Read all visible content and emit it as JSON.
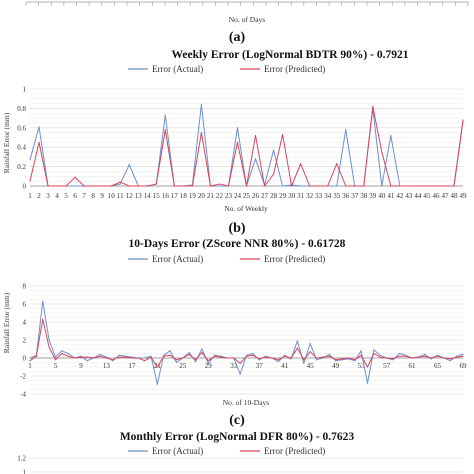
{
  "labels": {
    "a": "(a)",
    "b": "(b)",
    "c": "(c)"
  },
  "chart_data": [
    {
      "type": "line",
      "title": "",
      "xlabel": "No. of Days",
      "ylabel": "",
      "partial": true
    },
    {
      "type": "line",
      "title": "Weekly Error (LogNormal BDTR 90%) - 0.7921",
      "xlabel": "No. of Weekly",
      "ylabel": "Rainfall Error (mm)",
      "ylim": [
        0,
        1
      ],
      "yticks": [
        "0",
        "0.2",
        "0.4",
        "0.6",
        "0.8",
        "1"
      ],
      "grid": true,
      "legend": "top-center",
      "colors": {
        "actual": "#6e8fd0",
        "predicted": "#d9435a"
      },
      "x": [
        1,
        2,
        3,
        4,
        5,
        6,
        7,
        8,
        9,
        10,
        11,
        12,
        13,
        14,
        15,
        16,
        17,
        18,
        19,
        20,
        21,
        22,
        23,
        24,
        25,
        26,
        27,
        28,
        29,
        30,
        31,
        32,
        33,
        34,
        35,
        36,
        37,
        38,
        39,
        40,
        41,
        42,
        43,
        44,
        45,
        46,
        47,
        48,
        49
      ],
      "series": [
        {
          "name": "Error (Actual)",
          "values": [
            0.27,
            0.61,
            0,
            0,
            0,
            0,
            0,
            0,
            0,
            0,
            0.02,
            0.22,
            0,
            0,
            0.02,
            0.73,
            0,
            0,
            0.01,
            0.84,
            0,
            0,
            0,
            0.6,
            0,
            0.28,
            0.01,
            0.37,
            0,
            0.01,
            0,
            0,
            0,
            0,
            0,
            0.58,
            0,
            0,
            0.8,
            0,
            0.52,
            0,
            0,
            0,
            0,
            0,
            0,
            0,
            0.67
          ]
        },
        {
          "name": "Error (Predicted)",
          "values": [
            0.05,
            0.45,
            0,
            0,
            0,
            0.09,
            0,
            0,
            0,
            0,
            0.04,
            0,
            0,
            0,
            0.02,
            0.58,
            0,
            0,
            0,
            0.55,
            0,
            0.02,
            0,
            0.45,
            0,
            0.52,
            0,
            0.12,
            0.53,
            0,
            0.23,
            0,
            0,
            0,
            0.23,
            0,
            0,
            0,
            0.82,
            0.35,
            0,
            0,
            0,
            0,
            0,
            0,
            0,
            0,
            0.68
          ]
        }
      ]
    },
    {
      "type": "line",
      "title": "10-Days Error (ZScore NNR 80%) - 0.61728",
      "xlabel": "No. of 10-Days",
      "ylabel": "Rainfall Error (mm)",
      "ylim": [
        -4,
        8
      ],
      "yticks": [
        "-4",
        "-2",
        "0",
        "2",
        "4",
        "6",
        "8"
      ],
      "xticks": [
        "1",
        "5",
        "9",
        "13",
        "17",
        "21",
        "25",
        "29",
        "33",
        "37",
        "41",
        "45",
        "49",
        "53",
        "57",
        "61",
        "65",
        "69"
      ],
      "grid": true,
      "legend": "top-center",
      "colors": {
        "actual": "#6e8fd0",
        "predicted": "#d9435a"
      },
      "series": [
        {
          "name": "Error (Actual)",
          "values": [
            0,
            0.3,
            6.3,
            2,
            0.1,
            0.8,
            0.5,
            0,
            0.2,
            -0.3,
            0,
            0.4,
            0.1,
            -0.3,
            0.3,
            0.2,
            0.1,
            0,
            0,
            0.2,
            -2.9,
            0.3,
            0.8,
            -0.5,
            0,
            0.6,
            -0.4,
            1,
            -0.6,
            0.3,
            0.2,
            0,
            0,
            -1.8,
            0.3,
            0.5,
            -0.2,
            0.2,
            0,
            -0.4,
            0.3,
            -0.1,
            1.9,
            -0.6,
            1.6,
            -0.2,
            0,
            0.4,
            -0.3,
            -0.2,
            -0.1,
            -0.3,
            0.8,
            -2.8,
            0.9,
            0.3,
            0,
            -0.2,
            0.5,
            0.3,
            0,
            0.1,
            0.4,
            -0.1,
            0.3,
            0,
            -0.3,
            0.2,
            0.4
          ]
        },
        {
          "name": "Error (Predicted)",
          "values": [
            -0.3,
            0.2,
            4.3,
            1.2,
            -0.2,
            0.5,
            0.2,
            0,
            0.1,
            0.1,
            0,
            0.2,
            0,
            -0.2,
            0.1,
            0.1,
            0,
            0,
            -0.3,
            0.1,
            -1,
            0.2,
            0.3,
            -0.2,
            0,
            0.4,
            -0.2,
            0.6,
            -0.3,
            0.2,
            0.1,
            0,
            0,
            -0.6,
            0.2,
            0.3,
            -0.1,
            0.1,
            0,
            -0.2,
            0.2,
            0,
            1.1,
            -0.2,
            0.7,
            0,
            0.1,
            0.2,
            -0.2,
            -0.1,
            0,
            -0.2,
            0.3,
            -1,
            0.5,
            0.1,
            0,
            -0.1,
            0.2,
            0.2,
            0,
            0.1,
            0.2,
            0,
            0.2,
            0,
            -0.1,
            0.1,
            0.2
          ]
        }
      ]
    },
    {
      "type": "line",
      "title": "Monthly Error (LogNormal DFR 80%) - 0.7623",
      "ylabel": "",
      "yticks": [
        "1.2",
        "1"
      ],
      "legend": "top-center",
      "colors": {
        "actual": "#6e8fd0",
        "predicted": "#d9435a"
      },
      "series": [
        {
          "name": "Error (Actual)",
          "values": []
        },
        {
          "name": "Error (Predicted)",
          "values": []
        }
      ],
      "partial": true
    }
  ]
}
